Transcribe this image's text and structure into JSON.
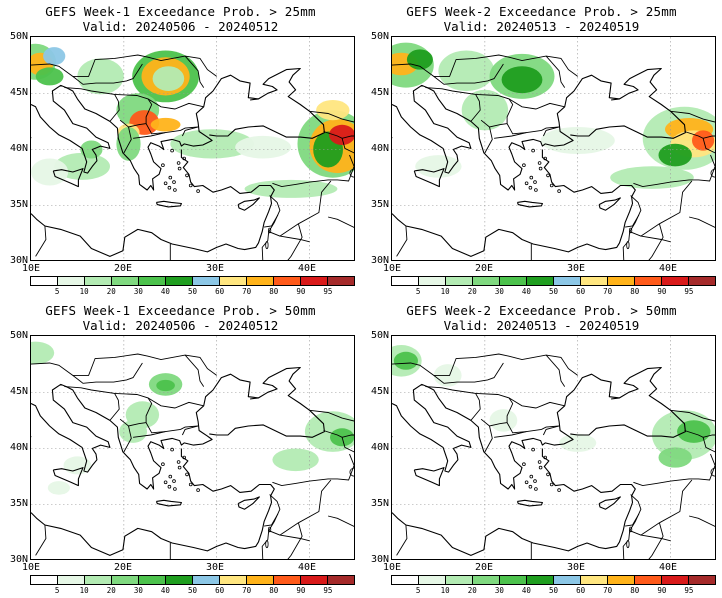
{
  "panels": [
    {
      "title": "GEFS Week-1 Exceedance Prob. > 25mm",
      "valid": "Valid: 20240506 - 20240512"
    },
    {
      "title": "GEFS Week-2 Exceedance Prob. > 25mm",
      "valid": "Valid: 20240513 - 20240519"
    },
    {
      "title": "GEFS Week-1 Exceedance Prob. > 50mm",
      "valid": "Valid: 20240506 - 20240512"
    },
    {
      "title": "GEFS Week-2 Exceedance Prob. > 50mm",
      "valid": "Valid: 20240513 - 20240519"
    }
  ],
  "axes": {
    "lat_labels": [
      "50N",
      "45N",
      "40N",
      "35N",
      "30N"
    ],
    "lon_labels": [
      "10E",
      "20E",
      "30E",
      "40E"
    ]
  },
  "colorbar": {
    "labels": [
      "5",
      "10",
      "20",
      "30",
      "40",
      "50",
      "60",
      "70",
      "80",
      "90",
      "95"
    ],
    "colors": [
      "#ffffff",
      "#e6f7e6",
      "#b3ebb3",
      "#80d980",
      "#4cc24c",
      "#1f9e1f",
      "#8cc7e6",
      "#ffe680",
      "#ffb31a",
      "#ff5a1a",
      "#d91a1a",
      "#a52a2a"
    ]
  }
}
